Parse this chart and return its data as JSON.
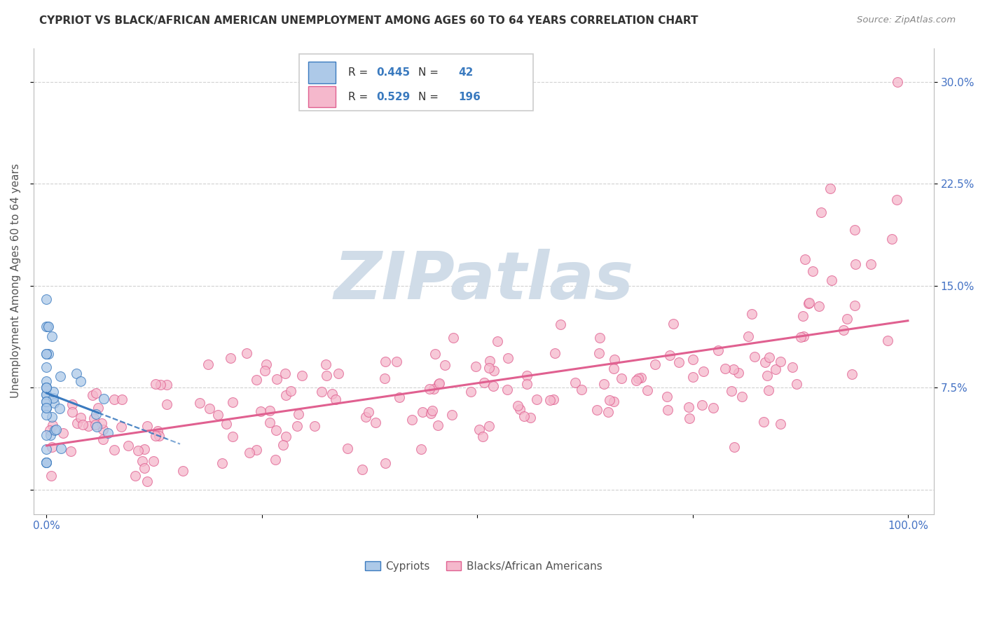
{
  "title": "CYPRIOT VS BLACK/AFRICAN AMERICAN UNEMPLOYMENT AMONG AGES 60 TO 64 YEARS CORRELATION CHART",
  "source": "Source: ZipAtlas.com",
  "ylabel": "Unemployment Among Ages 60 to 64 years",
  "legend": {
    "cypriot_R": "0.445",
    "cypriot_N": "42",
    "black_R": "0.529",
    "black_N": "196"
  },
  "cypriot_color": "#adc9e8",
  "black_color": "#f5b8cc",
  "cypriot_line_color": "#3a7abf",
  "black_line_color": "#e06090",
  "watermark_text": "ZIPatlas",
  "watermark_color": "#d0dce8",
  "background_color": "#ffffff",
  "grid_color": "#cccccc",
  "title_color": "#333333",
  "source_color": "#888888",
  "tick_color": "#4472c4",
  "ylabel_color": "#555555"
}
